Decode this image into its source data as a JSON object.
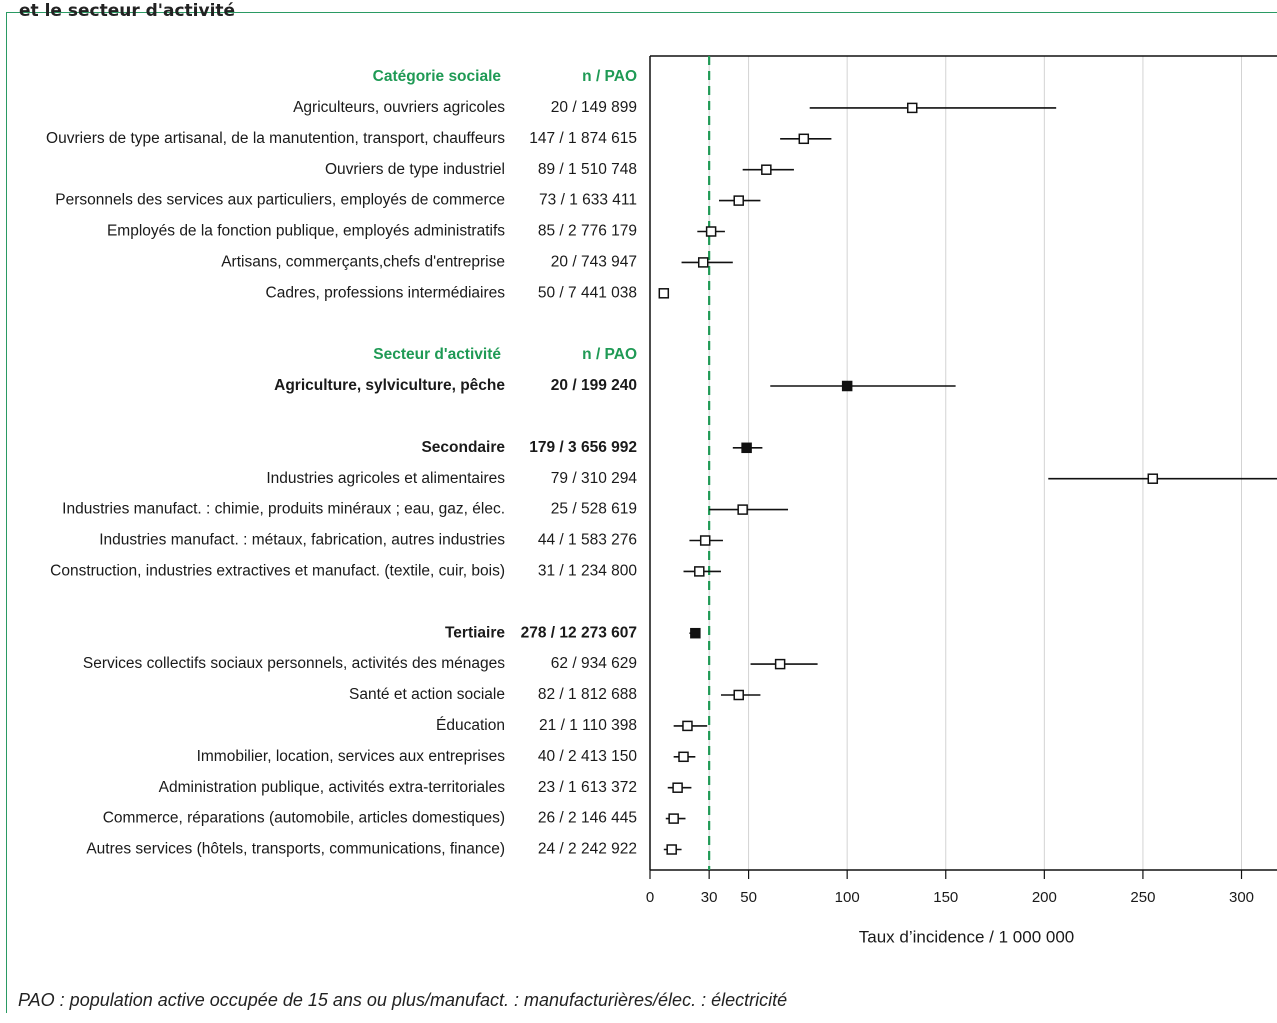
{
  "top_caption": "et le secteur d'activité",
  "note": "PAO : population active occupée de 15 ans ou plus/manufact. : manufacturières/élec. : électricité",
  "chart_data": {
    "type": "scatter",
    "subtype": "forest-plot",
    "xlabel": "Taux d’incidence / 1 000 000",
    "x_ticks": [
      0,
      30,
      50,
      100,
      150,
      200,
      250,
      300
    ],
    "xlim": [
      0,
      318
    ],
    "reference_line": 30,
    "grid": "vertical",
    "colors": {
      "accent": "#1f9a55",
      "marker": "#111111",
      "grid": "#d3d3d3"
    },
    "rows": [
      {
        "label": "Catégorie sociale",
        "n_pao": "n / PAO",
        "kind": "header"
      },
      {
        "label": "Agriculteurs, ouvriers agricoles",
        "n_pao": "20 / 149 899",
        "kind": "item",
        "estimate": 133,
        "ci": [
          81,
          206
        ],
        "filled": false
      },
      {
        "label": "Ouvriers de type artisanal, de la manutention, transport, chauffeurs",
        "n_pao": "147 / 1 874 615",
        "kind": "item",
        "estimate": 78,
        "ci": [
          66,
          92
        ],
        "filled": false
      },
      {
        "label": "Ouvriers de type industriel",
        "n_pao": "89 / 1 510 748",
        "kind": "item",
        "estimate": 59,
        "ci": [
          47,
          73
        ],
        "filled": false
      },
      {
        "label": "Personnels des services aux particuliers, employés de commerce",
        "n_pao": "73 / 1 633 411",
        "kind": "item",
        "estimate": 45,
        "ci": [
          35,
          56
        ],
        "filled": false
      },
      {
        "label": "Employés de la fonction publique, employés administratifs",
        "n_pao": "85 / 2 776 179",
        "kind": "item",
        "estimate": 31,
        "ci": [
          24,
          38
        ],
        "filled": false
      },
      {
        "label": "Artisans, commerçants,chefs d'entreprise",
        "n_pao": "20 / 743 947",
        "kind": "item",
        "estimate": 27,
        "ci": [
          16,
          42
        ],
        "filled": false
      },
      {
        "label": "Cadres, professions intermédiaires",
        "n_pao": "50 / 7 441 038",
        "kind": "item",
        "estimate": 7,
        "ci": [
          5,
          9
        ],
        "filled": false
      },
      {
        "label": "",
        "n_pao": "",
        "kind": "spacer"
      },
      {
        "label": "Secteur d'activité",
        "n_pao": "n / PAO",
        "kind": "header"
      },
      {
        "label": "Agriculture, sylviculture, pêche",
        "n_pao": "20 / 199 240",
        "kind": "bold",
        "estimate": 100,
        "ci": [
          61,
          155
        ],
        "filled": true
      },
      {
        "label": "",
        "n_pao": "",
        "kind": "spacer"
      },
      {
        "label": "Secondaire",
        "n_pao": "179 / 3 656 992",
        "kind": "bold",
        "estimate": 49,
        "ci": [
          42,
          57
        ],
        "filled": true
      },
      {
        "label": "Industries agricoles et alimentaires",
        "n_pao": "79 / 310 294",
        "kind": "item",
        "estimate": 255,
        "ci": [
          202,
          318
        ],
        "filled": false
      },
      {
        "label": "Industries manufact. : chimie, produits minéraux ; eau, gaz, élec.",
        "n_pao": "25 / 528 619",
        "kind": "item",
        "estimate": 47,
        "ci": [
          30,
          70
        ],
        "filled": false
      },
      {
        "label": "Industries manufact. : métaux, fabrication, autres industries",
        "n_pao": "44 / 1 583 276",
        "kind": "item",
        "estimate": 28,
        "ci": [
          20,
          37
        ],
        "filled": false
      },
      {
        "label": "Construction, industries extractives et manufact. (textile, cuir, bois)",
        "n_pao": "31 / 1 234 800",
        "kind": "item",
        "estimate": 25,
        "ci": [
          17,
          36
        ],
        "filled": false
      },
      {
        "label": "",
        "n_pao": "",
        "kind": "spacer"
      },
      {
        "label": "Tertiaire",
        "n_pao": "278 / 12 273 607",
        "kind": "bold",
        "estimate": 23,
        "ci": [
          20,
          25
        ],
        "filled": true
      },
      {
        "label": "Services collectifs sociaux personnels, activités des ménages",
        "n_pao": "62 / 934 629",
        "kind": "item",
        "estimate": 66,
        "ci": [
          51,
          85
        ],
        "filled": false
      },
      {
        "label": "Santé et action sociale",
        "n_pao": "82 / 1 812 688",
        "kind": "item",
        "estimate": 45,
        "ci": [
          36,
          56
        ],
        "filled": false
      },
      {
        "label": "Éducation",
        "n_pao": "21 / 1 110 398",
        "kind": "item",
        "estimate": 19,
        "ci": [
          12,
          29
        ],
        "filled": false
      },
      {
        "label": "Immobilier, location, services aux entreprises",
        "n_pao": "40 / 2 413 150",
        "kind": "item",
        "estimate": 17,
        "ci": [
          12,
          23
        ],
        "filled": false
      },
      {
        "label": "Administration publique, activités extra-territoriales",
        "n_pao": "23 / 1 613 372",
        "kind": "item",
        "estimate": 14,
        "ci": [
          9,
          21
        ],
        "filled": false
      },
      {
        "label": "Commerce, réparations (automobile, articles domestiques)",
        "n_pao": "26 / 2 146 445",
        "kind": "item",
        "estimate": 12,
        "ci": [
          8,
          18
        ],
        "filled": false
      },
      {
        "label": "Autres services (hôtels, transports, communications, finance)",
        "n_pao": "24 / 2 242 922",
        "kind": "item",
        "estimate": 11,
        "ci": [
          7,
          16
        ],
        "filled": false
      }
    ]
  }
}
